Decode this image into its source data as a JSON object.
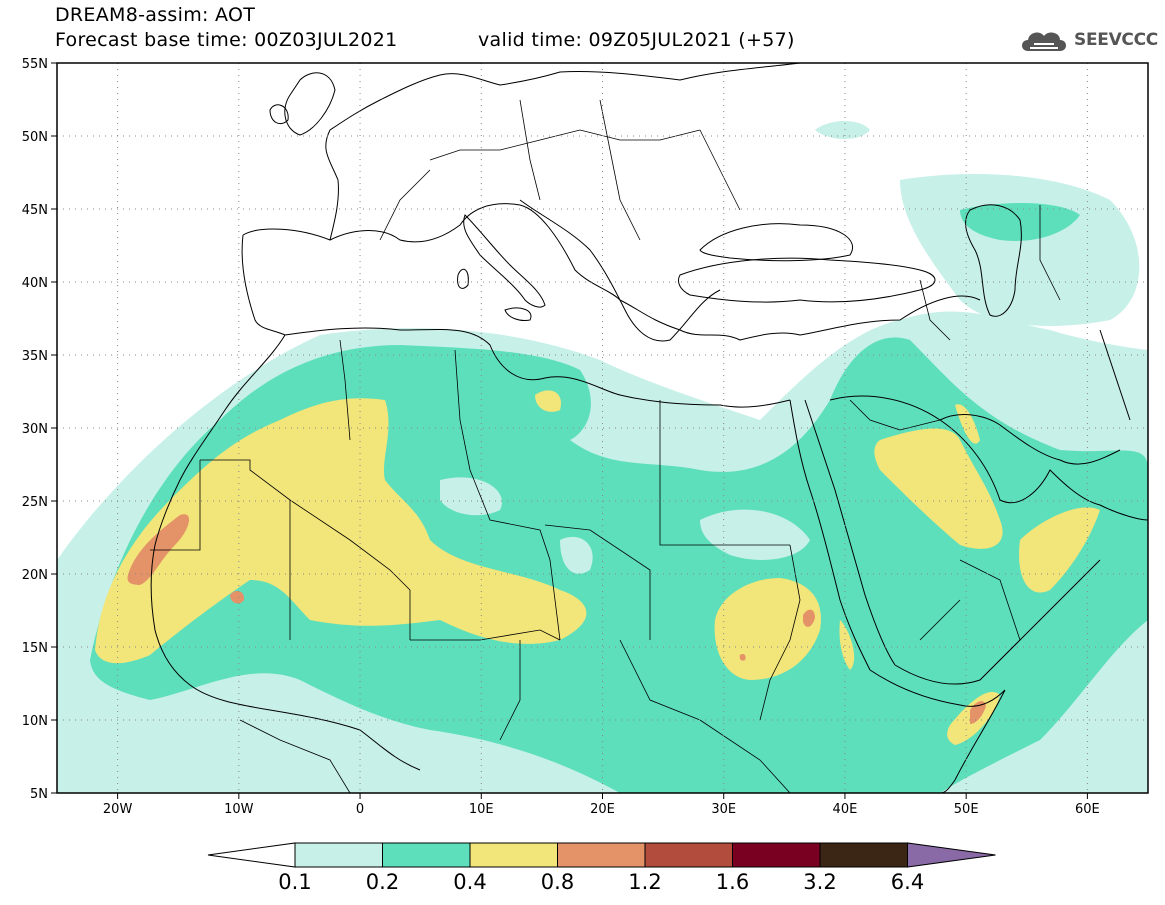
{
  "header": {
    "title_line1": "DREAM8-assim: AOT",
    "title_line2": "Forecast base time: 00Z03JUL2021",
    "valid_time": "valid time: 09Z05JUL2021 (+57)"
  },
  "logo": {
    "text": "SEEVCCC",
    "icon": "cloud-icon"
  },
  "map": {
    "lon_range": [
      -25,
      65
    ],
    "lat_range": [
      5,
      55
    ],
    "lat_ticks": [
      "55N",
      "50N",
      "45N",
      "40N",
      "35N",
      "30N",
      "25N",
      "20N",
      "15N",
      "10N",
      "5N"
    ],
    "lon_ticks": [
      "20W",
      "10W",
      "0",
      "10E",
      "20E",
      "30E",
      "40E",
      "50E",
      "60E"
    ],
    "grid": "dotted"
  },
  "legend": {
    "thresholds": [
      "0.1",
      "0.2",
      "0.4",
      "0.8",
      "1.2",
      "1.6",
      "3.2",
      "6.4"
    ],
    "colors": {
      "below": "#ffffff",
      "c1": "#c6f0e8",
      "c2": "#5ddfbb",
      "c3": "#f2e57a",
      "c4": "#e49267",
      "c5": "#b24c3c",
      "c6": "#7a0022",
      "c7": "#3b2515",
      "c8": "#8a6aa6"
    }
  }
}
